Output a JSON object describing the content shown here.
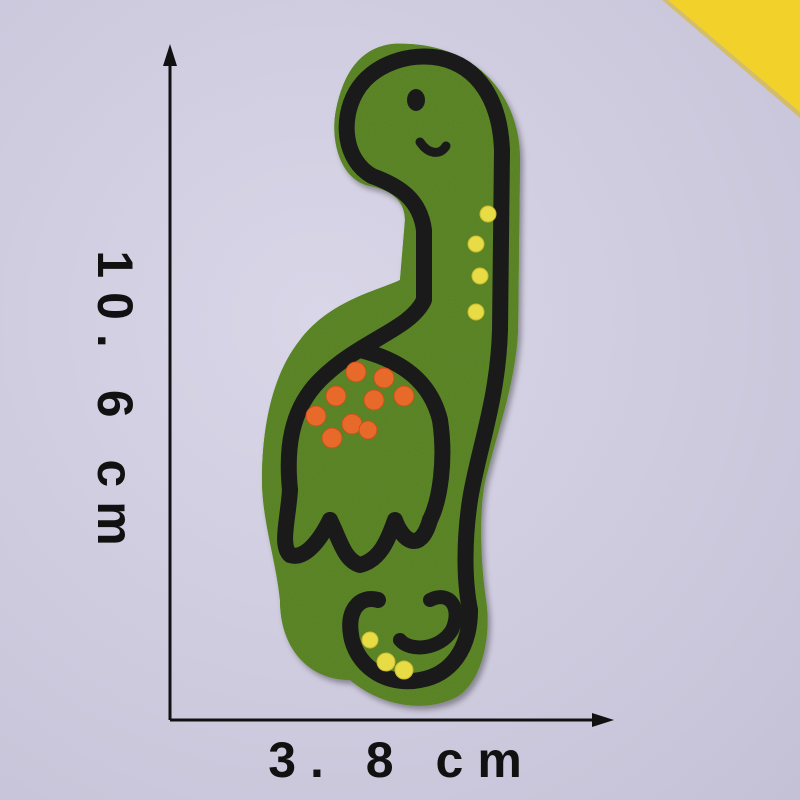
{
  "measurements": {
    "height_label": "10. 6 cm",
    "width_label": "3. 8 cm"
  },
  "colors": {
    "background": "#cfcbdf",
    "paper": "#f2d22a",
    "patch_green": "#5e8a2a",
    "outline": "#1a1a1a",
    "spots_yellow": "#e8dc46",
    "spots_orange": "#e86a2a"
  }
}
